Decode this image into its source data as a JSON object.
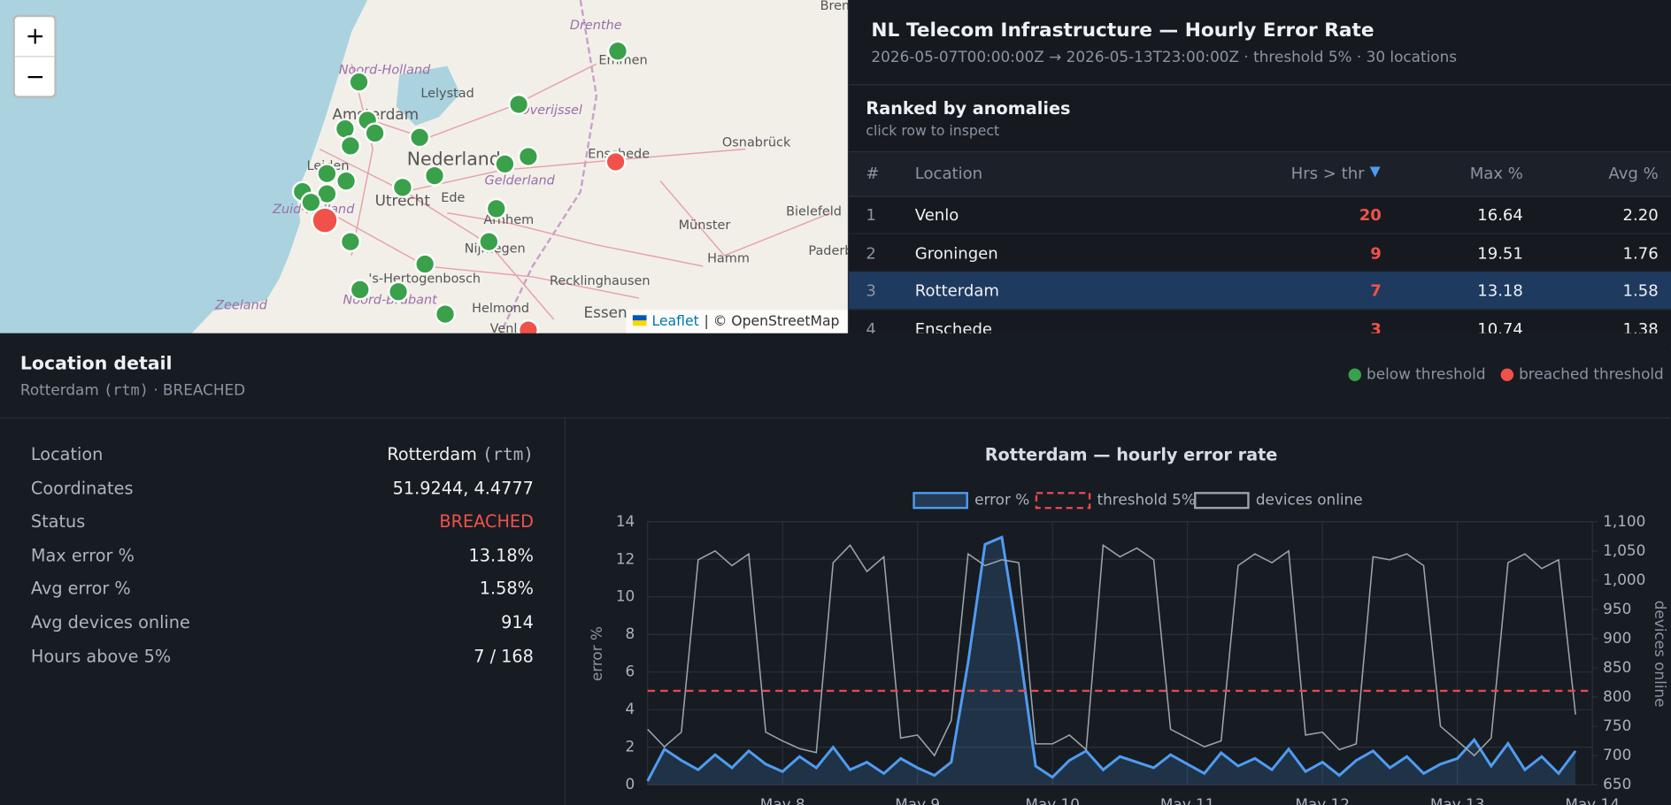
{
  "map": {
    "zoom_in": "+",
    "zoom_out": "−",
    "attribution_link": "Leaflet",
    "attribution": "| © OpenStreetMap",
    "labels": [
      "Brem",
      "Drenthe",
      "Emmen",
      "Noord-Holland",
      "Lelystad",
      "Overijssel",
      "Amsterdam",
      "Nederland",
      "Osnabrück",
      "Enschede",
      "Gelderland",
      "Leiden",
      "Utrecht",
      "Ede",
      "Bielefeld",
      "Arnhem",
      "Münster",
      "Zuid-Holland",
      "Nijmegen",
      "Paderb",
      "Hamm",
      "'s-Hertogenbosch",
      "Recklinghausen",
      "Noord-Brabant",
      "Zeeland",
      "Helmond",
      "Essen",
      "Venlo"
    ]
  },
  "header": {
    "title": "NL Telecom Infrastructure — Hourly Error Rate",
    "subtitle": "2026-05-07T00:00:00Z → 2026-05-13T23:00:00Z · threshold 5% · 30 locations"
  },
  "ranking": {
    "title": "Ranked by anomalies",
    "hint": "click row to inspect",
    "columns": [
      "#",
      "Location",
      "Hrs > thr",
      "Max %",
      "Avg %"
    ],
    "rows": [
      [
        "1",
        "Venlo",
        "20",
        "16.64",
        "2.20"
      ],
      [
        "2",
        "Groningen",
        "9",
        "19.51",
        "1.76"
      ],
      [
        "3",
        "Rotterdam",
        "7",
        "13.18",
        "1.58"
      ],
      [
        "4",
        "Enschede",
        "3",
        "10.74",
        "1.38"
      ]
    ]
  },
  "detail": {
    "title": "Location detail",
    "subtitle": [
      "Rotterdam",
      "(rtm)",
      "· BREACHED"
    ],
    "legend": [
      "below threshold",
      "breached threshold"
    ],
    "fields": [
      {
        "label": "Location",
        "value": "Rotterdam",
        "code": "(rtm)"
      },
      {
        "label": "Coordinates",
        "value": "51.9244, 4.4777"
      },
      {
        "label": "Status",
        "value": "BREACHED"
      },
      {
        "label": "Max error %",
        "value": "13.18%"
      },
      {
        "label": "Avg error %",
        "value": "1.58%"
      },
      {
        "label": "Avg devices online",
        "value": "914"
      },
      {
        "label": "Hours above 5%",
        "value": "7 / 168"
      }
    ]
  },
  "chart_data": {
    "type": "line",
    "title": "Rotterdam — hourly error rate",
    "ylabel": "error %",
    "y2label": "devices online",
    "x": [
      0,
      3,
      6,
      9,
      12,
      15,
      18,
      21,
      24,
      27,
      30,
      33,
      36,
      39,
      42,
      45,
      48,
      51,
      54,
      57,
      60,
      63,
      66,
      69,
      72,
      75,
      78,
      81,
      84,
      87,
      90,
      93,
      96,
      99,
      102,
      105,
      108,
      111,
      114,
      117,
      120,
      123,
      126,
      129,
      132,
      135,
      138,
      141,
      144,
      147,
      150,
      153,
      156,
      159,
      162,
      165
    ],
    "xlim": [
      0,
      168
    ],
    "xticks": [
      {
        "value": 24,
        "label": "May 8"
      },
      {
        "value": 48,
        "label": "May 9"
      },
      {
        "value": 72,
        "label": "May 10"
      },
      {
        "value": 96,
        "label": "May 11"
      },
      {
        "value": 120,
        "label": "May 12"
      },
      {
        "value": 144,
        "label": "May 13"
      },
      {
        "value": 168,
        "label": "May 14"
      }
    ],
    "ylim": [
      0,
      14
    ],
    "yticks": [
      0,
      2,
      4,
      6,
      8,
      10,
      12,
      14
    ],
    "y2lim": [
      650,
      1100
    ],
    "y2ticks": [
      650,
      700,
      750,
      800,
      850,
      900,
      950,
      {
        "value": 1000,
        "label": "1,000"
      },
      {
        "value": 1050,
        "label": "1,050"
      },
      {
        "value": 1100,
        "label": "1,100"
      }
    ],
    "threshold": 5,
    "threshold_label": "threshold 5%",
    "threshold_color": "#e5484d",
    "grid": true,
    "series": [
      {
        "name": "error %",
        "color": "#4f9cf0",
        "values": [
          0.2,
          1.9,
          1.3,
          0.8,
          1.6,
          0.9,
          1.8,
          1.1,
          0.7,
          1.5,
          0.9,
          2.0,
          0.8,
          1.2,
          0.6,
          1.4,
          0.9,
          0.5,
          1.2,
          6.5,
          12.8,
          13.18,
          7.5,
          1.0,
          0.4,
          1.3,
          1.8,
          0.8,
          1.5,
          1.2,
          0.9,
          1.6,
          1.1,
          0.6,
          1.7,
          1.0,
          1.4,
          0.8,
          1.9,
          0.7,
          1.2,
          0.5,
          1.3,
          1.8,
          0.9,
          1.5,
          0.6,
          1.1,
          1.4,
          2.4,
          1.0,
          2.2,
          0.8,
          1.5,
          0.6,
          1.8
        ]
      },
      {
        "name": "devices online",
        "color": "#9ca3ab",
        "axis": "y2",
        "values": [
          745,
          715,
          740,
          1035,
          1050,
          1025,
          1045,
          740,
          725,
          712,
          705,
          1030,
          1060,
          1015,
          1040,
          730,
          735,
          700,
          760,
          1045,
          1025,
          1035,
          1030,
          720,
          720,
          735,
          710,
          1060,
          1040,
          1055,
          1035,
          745,
          730,
          715,
          725,
          1025,
          1045,
          1030,
          1050,
          735,
          740,
          710,
          720,
          1040,
          1035,
          1045,
          1025,
          750,
          725,
          700,
          730,
          1030,
          1045,
          1020,
          1035,
          770
        ]
      }
    ]
  }
}
